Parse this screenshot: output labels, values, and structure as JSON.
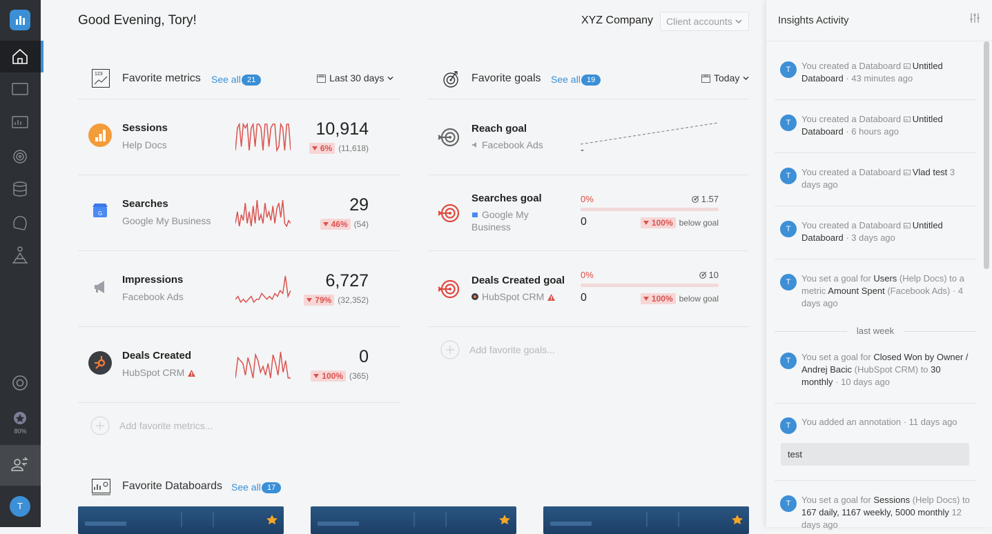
{
  "sidebar": {
    "badge_progress": "80%",
    "avatar": "T"
  },
  "header": {
    "greeting": "Good Evening, Tory!",
    "company": "XYZ Company",
    "account_select": "Client accounts"
  },
  "metrics": {
    "title": "Favorite metrics",
    "see_all": "See all",
    "count": 21,
    "range": "Last 30 days",
    "add": "Add favorite metrics...",
    "items": [
      {
        "name": "Sessions",
        "source": "Help Docs",
        "value": "10,914",
        "change": "6%",
        "previous": "(11,618)",
        "sparkline": [
          2,
          8,
          9,
          3,
          9,
          8,
          9,
          2,
          8,
          9,
          3,
          9,
          9,
          8,
          2,
          9,
          9,
          3,
          8,
          9,
          9,
          2,
          3,
          9,
          8,
          2,
          9,
          9,
          2
        ]
      },
      {
        "name": "Searches",
        "source": "Google My Business",
        "value": "29",
        "change": "46%",
        "previous": "(54)",
        "sparkline": [
          2,
          6,
          1,
          5,
          3,
          9,
          2,
          6,
          1,
          8,
          2,
          10,
          3,
          5,
          2,
          9,
          4,
          6,
          3,
          8,
          2,
          7,
          9,
          4,
          10,
          2,
          1,
          3,
          2
        ]
      },
      {
        "name": "Impressions",
        "source": "Facebook Ads",
        "value": "6,727",
        "change": "79%",
        "previous": "(32,352)",
        "sparkline": [
          2,
          3,
          1,
          2,
          1,
          2,
          3,
          1,
          2,
          2,
          4,
          3,
          2,
          3,
          2,
          4,
          3,
          5,
          4,
          10,
          3,
          5
        ]
      },
      {
        "name": "Deals Created",
        "source": "HubSpot CRM",
        "warning": true,
        "value": "0",
        "change": "100%",
        "previous": "(365)",
        "sparkline": [
          1,
          8,
          7,
          6,
          2,
          8,
          5,
          1,
          9,
          7,
          3,
          5,
          2,
          6,
          1,
          9,
          6,
          2,
          10,
          3,
          7,
          1,
          1
        ]
      }
    ]
  },
  "goals": {
    "title": "Favorite goals",
    "see_all": "See all",
    "count": 19,
    "range": "Today",
    "add": "Add favorite goals...",
    "items": [
      {
        "name": "Reach goal",
        "source": "Facebook Ads",
        "value": "-"
      },
      {
        "name": "Searches goal",
        "source": "Google My Business",
        "progress": "0%",
        "target": "1.57",
        "current": "0",
        "change": "100%",
        "status": "below goal"
      },
      {
        "name": "Deals Created goal",
        "source": "HubSpot CRM",
        "warning": true,
        "progress": "0%",
        "target": "10",
        "current": "0",
        "change": "100%",
        "status": "below goal"
      }
    ]
  },
  "databoards": {
    "title": "Favorite Databoards",
    "see_all": "See all",
    "count": 17
  },
  "insights": {
    "title": "Insights Activity",
    "divider": "last week",
    "avatar": "T",
    "entries": [
      {
        "parts": [
          {
            "text": "You created a Databoard"
          },
          {
            "text": "Untitled Databoard",
            "bold": true
          },
          {
            "text": "· 43 minutes ago"
          }
        ]
      },
      {
        "parts": [
          {
            "text": "You created a Databoard"
          },
          {
            "text": "Untitled Databoard",
            "bold": true
          },
          {
            "text": "· 6 hours ago"
          }
        ]
      },
      {
        "parts": [
          {
            "text": "You created a Databoard"
          },
          {
            "text": "Vlad test",
            "bold": true
          },
          {
            "text": "3 days ago"
          }
        ]
      },
      {
        "parts": [
          {
            "text": "You created a Databoard"
          },
          {
            "text": "Untitled Databoard",
            "bold": true
          },
          {
            "text": "· 3 days ago"
          }
        ]
      },
      {
        "parts": [
          {
            "text": "You set a goal for"
          },
          {
            "text": "Users",
            "bold": true
          },
          {
            "text": "(Help Docs) to a metric"
          },
          {
            "text": "Amount Spent",
            "bold": true
          },
          {
            "text": "(Facebook Ads)"
          },
          {
            "text": "· 4 days ago"
          }
        ]
      },
      {
        "parts": [
          {
            "text": "You set a goal for"
          },
          {
            "text": "Closed Won by Owner / Andrej Bacic",
            "bold": true
          },
          {
            "text": "(HubSpot CRM) to"
          },
          {
            "text": "30 monthly",
            "bold": true
          },
          {
            "text": "· 10 days ago"
          }
        ]
      },
      {
        "parts": [
          {
            "text": "You added an annotation · 11 days ago"
          }
        ],
        "note": "test"
      },
      {
        "parts": [
          {
            "text": "You set a goal for"
          },
          {
            "text": "Sessions",
            "bold": true
          },
          {
            "text": "(Help Docs) to"
          },
          {
            "text": "167 daily, 1167 weekly, 5000 monthly",
            "bold": true
          },
          {
            "text": "12 days ago"
          }
        ]
      }
    ]
  }
}
